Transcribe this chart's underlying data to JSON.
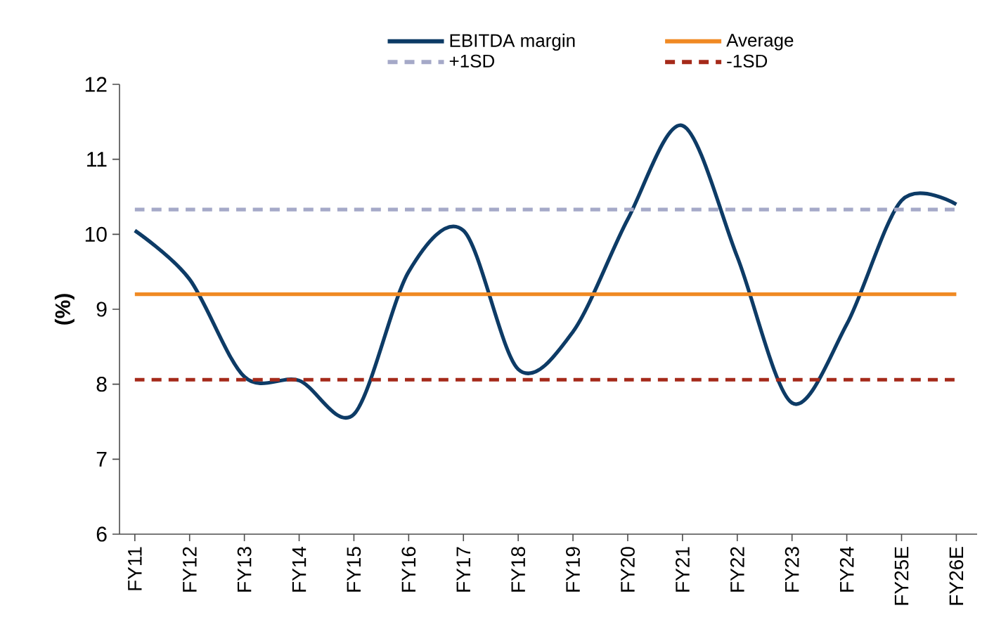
{
  "chart_data": {
    "type": "line",
    "ylabel": "(%)",
    "categories": [
      "FY11",
      "FY12",
      "FY13",
      "FY14",
      "FY15",
      "FY16",
      "FY17",
      "FY18",
      "FY19",
      "FY20",
      "FY21",
      "FY22",
      "FY23",
      "FY24",
      "FY25E",
      "FY26E"
    ],
    "series": [
      {
        "name": "EBITDA margin",
        "color": "#0d3b66",
        "line_style": "solid",
        "values": [
          10.05,
          9.4,
          8.1,
          8.05,
          7.6,
          9.5,
          10.05,
          8.2,
          8.7,
          10.2,
          11.45,
          9.7,
          7.75,
          8.8,
          10.45,
          10.4
        ]
      },
      {
        "name": "Average",
        "color": "#f08a24",
        "line_style": "solid",
        "values": [
          9.2,
          9.2,
          9.2,
          9.2,
          9.2,
          9.2,
          9.2,
          9.2,
          9.2,
          9.2,
          9.2,
          9.2,
          9.2,
          9.2,
          9.2,
          9.2
        ]
      },
      {
        "name": "+1SD",
        "color": "#a5a9c8",
        "line_style": "dashed",
        "values": [
          10.33,
          10.33,
          10.33,
          10.33,
          10.33,
          10.33,
          10.33,
          10.33,
          10.33,
          10.33,
          10.33,
          10.33,
          10.33,
          10.33,
          10.33,
          10.33
        ]
      },
      {
        "name": "-1SD",
        "color": "#a52a1a",
        "line_style": "dashed",
        "values": [
          8.06,
          8.06,
          8.06,
          8.06,
          8.06,
          8.06,
          8.06,
          8.06,
          8.06,
          8.06,
          8.06,
          8.06,
          8.06,
          8.06,
          8.06,
          8.06
        ]
      }
    ],
    "ylim": [
      6,
      12
    ],
    "yticks": [
      6,
      7,
      8,
      9,
      10,
      11,
      12
    ],
    "grid": false,
    "legend": "top",
    "marker": "none"
  }
}
